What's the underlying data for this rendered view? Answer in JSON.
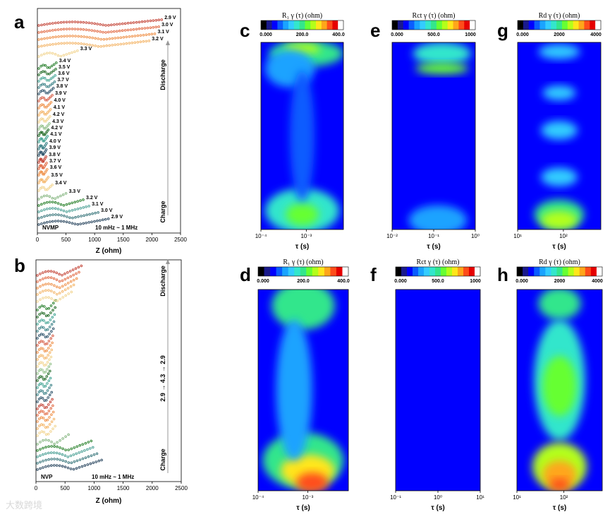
{
  "watermark": "大数跨境",
  "chart_data": [
    {
      "panel": "a",
      "type": "scatter",
      "title": "",
      "xlabel": "Z (ohm)",
      "xlim": [
        0,
        2500
      ],
      "xticks": [
        0,
        500,
        1000,
        1500,
        2000,
        2500
      ],
      "sample": "NVMP",
      "freq_note": "10 mHz ~ 1 MHz",
      "arrow_top": "Discharge",
      "arrow_bottom": "Charge",
      "series": [
        {
          "name": "2.9 V",
          "xmax": 1240,
          "color": "#1f3d57",
          "group": "charge"
        },
        {
          "name": "3.0 V",
          "xmax": 1060,
          "color": "#2c6d73",
          "group": "charge"
        },
        {
          "name": "3.1 V",
          "xmax": 900,
          "color": "#3f9a8e",
          "group": "charge"
        },
        {
          "name": "3.2 V",
          "xmax": 800,
          "color": "#1d7a1f",
          "group": "charge"
        },
        {
          "name": "3.3 V",
          "xmax": 500,
          "color": "#7fb27a",
          "group": "charge"
        },
        {
          "name": "3.4 V",
          "xmax": 260,
          "color": "#f1d28a",
          "group": "charge"
        },
        {
          "name": "3.5 V",
          "xmax": 190,
          "color": "#f3b05e",
          "group": "charge"
        },
        {
          "name": "3.6 V",
          "xmax": 170,
          "color": "#ee8a3e",
          "group": "charge"
        },
        {
          "name": "3.7 V",
          "xmax": 160,
          "color": "#e0623a",
          "group": "charge"
        },
        {
          "name": "3.8 V",
          "xmax": 150,
          "color": "#c0392b",
          "group": "charge"
        },
        {
          "name": "3.9 V",
          "xmax": 155,
          "color": "#234a63",
          "group": "charge"
        },
        {
          "name": "4.0 V",
          "xmax": 160,
          "color": "#2f7a80",
          "group": "charge"
        },
        {
          "name": "4.1 V",
          "xmax": 175,
          "color": "#3aa08f",
          "group": "charge"
        },
        {
          "name": "4.2 V",
          "xmax": 190,
          "color": "#16631b",
          "group": "charge"
        },
        {
          "name": "4.3 V",
          "xmax": 210,
          "color": "#8fbf86",
          "group": "top"
        },
        {
          "name": "4.2 V",
          "xmax": 220,
          "color": "#f1d28a",
          "group": "discharge"
        },
        {
          "name": "4.1 V",
          "xmax": 230,
          "color": "#f3b05e",
          "group": "discharge"
        },
        {
          "name": "4.0 V",
          "xmax": 240,
          "color": "#ee8a3e",
          "group": "discharge"
        },
        {
          "name": "3.9 V",
          "xmax": 260,
          "color": "#d4533a",
          "group": "discharge"
        },
        {
          "name": "3.8 V",
          "xmax": 280,
          "color": "#234a63",
          "group": "discharge"
        },
        {
          "name": "3.7 V",
          "xmax": 300,
          "color": "#2f7a80",
          "group": "discharge"
        },
        {
          "name": "3.6 V",
          "xmax": 310,
          "color": "#3aa08f",
          "group": "discharge"
        },
        {
          "name": "3.5 V",
          "xmax": 320,
          "color": "#16631b",
          "group": "discharge"
        },
        {
          "name": "3.4 V",
          "xmax": 330,
          "color": "#1f7a24",
          "group": "discharge"
        },
        {
          "name": "3.3 V",
          "xmax": 700,
          "color": "#f1d28a",
          "group": "discharge"
        },
        {
          "name": "3.2 V",
          "xmax": 1950,
          "color": "#f3b05e",
          "group": "discharge"
        },
        {
          "name": "3.1 V",
          "xmax": 2050,
          "color": "#ee8a3e",
          "group": "discharge"
        },
        {
          "name": "3.0 V",
          "xmax": 2120,
          "color": "#e0623a",
          "group": "discharge"
        },
        {
          "name": "2.9 V",
          "xmax": 2170,
          "color": "#c0392b",
          "group": "discharge"
        }
      ]
    },
    {
      "panel": "b",
      "type": "scatter",
      "xlabel": "Z (ohm)",
      "xlim": [
        0,
        2500
      ],
      "xticks": [
        0,
        500,
        1000,
        1500,
        2000,
        2500
      ],
      "sample": "NVP",
      "freq_note": "10 mHz ~ 1 MHz",
      "arrow_top": "Discharge",
      "arrow_mid": "2.9 → 4.3 → 2.9",
      "arrow_bottom": "Charge",
      "series_count": 29
    },
    {
      "panel": "c",
      "type": "heatmap",
      "colorbar_title": "R₁ γ (τ) (ohm)",
      "colorbar_range": [
        0,
        400
      ],
      "colorbar_ticks": [
        "0.000",
        "200.0",
        "400.0"
      ],
      "xlabel": "τ (s)",
      "xticks": [
        "10⁻⁴",
        "10⁻³"
      ]
    },
    {
      "panel": "d",
      "type": "heatmap",
      "colorbar_title": "R₁ γ (τ) (ohm)",
      "colorbar_range": [
        0,
        400
      ],
      "colorbar_ticks": [
        "0.000",
        "200.0",
        "400.0"
      ],
      "xlabel": "τ (s)",
      "xticks": [
        "10⁻⁴",
        "10⁻³"
      ]
    },
    {
      "panel": "e",
      "type": "heatmap",
      "colorbar_title": "Rct γ (τ) (ohm)",
      "colorbar_range": [
        0,
        1000
      ],
      "colorbar_ticks": [
        "0.000",
        "500.0",
        "1000"
      ],
      "xlabel": "τ (s)",
      "xticks": [
        "10⁻²",
        "10⁻¹",
        "10⁰"
      ]
    },
    {
      "panel": "f",
      "type": "heatmap",
      "colorbar_title": "Rct γ (τ) (ohm)",
      "colorbar_range": [
        0,
        1000
      ],
      "colorbar_ticks": [
        "0.000",
        "500.0",
        "1000"
      ],
      "xlabel": "τ (s)",
      "xticks": [
        "10⁻¹",
        "10⁰",
        "10¹"
      ]
    },
    {
      "panel": "g",
      "type": "heatmap",
      "colorbar_title": "Rd γ (τ) (ohm)",
      "colorbar_range": [
        0,
        4000
      ],
      "colorbar_ticks": [
        "0.000",
        "2000",
        "4000"
      ],
      "xlabel": "τ (s)",
      "xticks": [
        "10¹",
        "10²"
      ]
    },
    {
      "panel": "h",
      "type": "heatmap",
      "colorbar_title": "Rd γ (τ) (ohm)",
      "colorbar_range": [
        0,
        4000
      ],
      "colorbar_ticks": [
        "0.000",
        "2000",
        "4000"
      ],
      "xlabel": "τ (s)",
      "xticks": [
        "10¹",
        "10²"
      ]
    }
  ],
  "colormap": [
    "#000000",
    "#1a1a8c",
    "#0000ff",
    "#0a5cff",
    "#1aa3ff",
    "#33ccff",
    "#33e6cc",
    "#33e68c",
    "#66ff33",
    "#b3ff1a",
    "#ffe61a",
    "#ffa61a",
    "#ff4d1a",
    "#e60000",
    "#ffffff"
  ]
}
